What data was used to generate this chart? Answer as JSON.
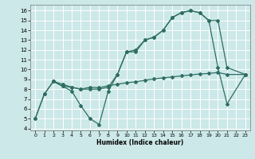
{
  "xlabel": "Humidex (Indice chaleur)",
  "bg_color": "#cce8e8",
  "grid_color": "#ffffff",
  "line_color": "#2e6e62",
  "xlim": [
    -0.5,
    23.5
  ],
  "ylim": [
    3.8,
    16.6
  ],
  "xticks": [
    0,
    1,
    2,
    3,
    4,
    5,
    6,
    7,
    8,
    9,
    10,
    11,
    12,
    13,
    14,
    15,
    16,
    17,
    18,
    19,
    20,
    21,
    22,
    23
  ],
  "yticks": [
    4,
    5,
    6,
    7,
    8,
    9,
    10,
    11,
    12,
    13,
    14,
    15,
    16
  ],
  "line1_x": [
    0,
    1,
    2,
    3,
    4,
    5,
    6,
    7,
    8,
    9,
    10,
    11,
    12,
    13,
    14,
    15,
    16,
    17,
    18,
    19,
    20,
    21,
    23
  ],
  "line1_y": [
    5.0,
    7.5,
    8.8,
    8.3,
    7.8,
    6.3,
    5.0,
    4.4,
    7.8,
    9.5,
    11.8,
    11.8,
    13.0,
    13.3,
    14.0,
    15.3,
    15.8,
    16.0,
    15.8,
    15.0,
    10.2,
    6.5,
    9.5
  ],
  "line2_x": [
    0,
    1,
    2,
    3,
    4,
    5,
    6,
    7,
    8,
    9,
    10,
    11,
    12,
    13,
    14,
    15,
    16,
    17,
    18,
    19,
    20,
    21,
    23
  ],
  "line2_y": [
    5.0,
    7.5,
    8.8,
    8.3,
    8.2,
    8.0,
    8.2,
    8.15,
    8.35,
    8.5,
    8.65,
    8.75,
    8.9,
    9.05,
    9.15,
    9.25,
    9.35,
    9.45,
    9.55,
    9.6,
    9.7,
    9.5,
    9.5
  ],
  "line3_x": [
    2,
    3,
    4,
    5,
    6,
    7,
    8,
    9,
    10,
    11,
    12,
    13,
    14,
    15,
    16,
    17,
    18,
    19,
    20,
    21,
    23
  ],
  "line3_y": [
    8.8,
    8.5,
    8.2,
    8.0,
    8.0,
    8.0,
    8.2,
    9.5,
    11.8,
    12.0,
    13.0,
    13.3,
    14.0,
    15.3,
    15.8,
    16.0,
    15.8,
    15.0,
    15.0,
    10.2,
    9.5
  ]
}
